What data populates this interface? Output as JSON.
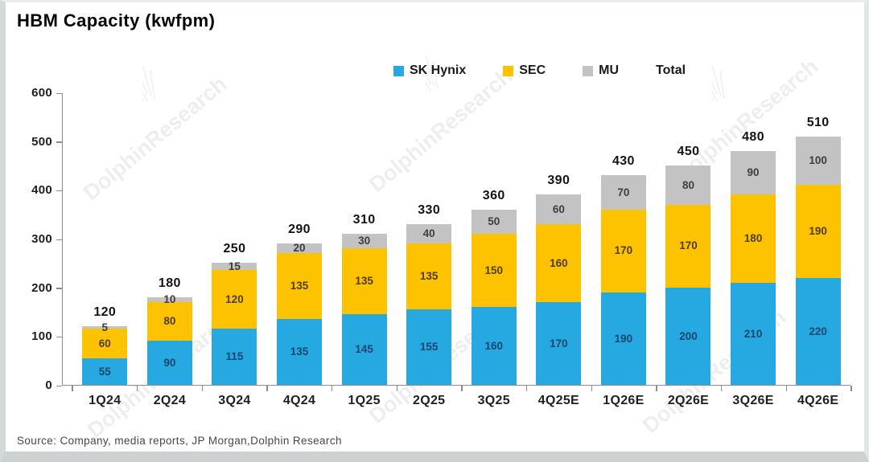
{
  "page": {
    "title": "HBM Capacity  (kwfpm)",
    "source": "Source:  Company,  media reports,  JP Morgan,Dolphin Research",
    "watermark_text": "DolphinResearch"
  },
  "legend": {
    "items": [
      {
        "label": "SK Hynix",
        "color": "#25a9e0"
      },
      {
        "label": "SEC",
        "color": "#fdc301"
      },
      {
        "label": "MU",
        "color": "#c3c3c3"
      },
      {
        "label": "Total",
        "color": ""
      }
    ]
  },
  "chart_data": {
    "type": "bar",
    "stacked": true,
    "title": "HBM Capacity (kwfpm)",
    "xlabel": "",
    "ylabel": "",
    "ylim": [
      0,
      600
    ],
    "yticks": [
      0,
      100,
      200,
      300,
      400,
      500,
      600
    ],
    "grid": false,
    "legend_position": "top",
    "categories": [
      "1Q24",
      "2Q24",
      "3Q24",
      "4Q24",
      "1Q25",
      "2Q25",
      "3Q25",
      "4Q25E",
      "1Q26E",
      "2Q26E",
      "3Q26E",
      "4Q26E"
    ],
    "series": [
      {
        "name": "SK Hynix",
        "color": "#25a9e0",
        "label_color": "#16466e",
        "values": [
          55,
          90,
          115,
          135,
          145,
          155,
          160,
          170,
          190,
          200,
          210,
          220
        ]
      },
      {
        "name": "SEC",
        "color": "#fdc301",
        "label_color": "#4f3c00",
        "values": [
          60,
          80,
          120,
          135,
          135,
          135,
          150,
          160,
          170,
          170,
          180,
          190
        ]
      },
      {
        "name": "MU",
        "color": "#c3c3c3",
        "label_color": "#3d3d3d",
        "values": [
          5,
          10,
          15,
          20,
          30,
          40,
          50,
          60,
          70,
          80,
          90,
          100
        ]
      }
    ],
    "totals": [
      120,
      180,
      250,
      290,
      310,
      330,
      360,
      390,
      430,
      450,
      480,
      510
    ]
  }
}
